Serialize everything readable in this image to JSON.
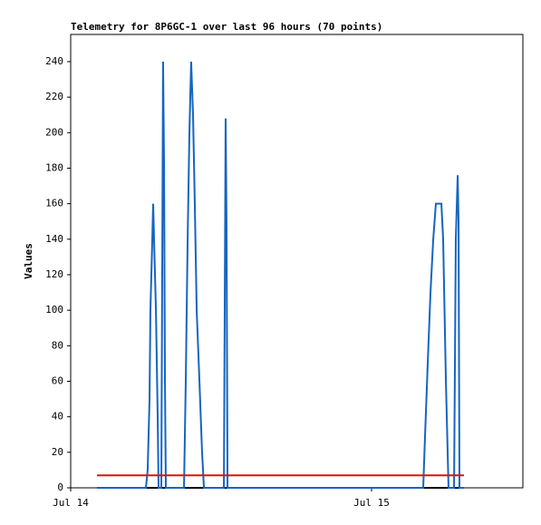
{
  "chart_data": {
    "type": "line",
    "title": "Telemetry for 8P6GC-1 over last 96 hours (70 points)",
    "y_label": "Values",
    "xlim": [
      0,
      36.07
    ],
    "xticks": [
      {
        "value": 0,
        "label": "Jul 14"
      },
      {
        "value": 24,
        "label": "Jul 15"
      }
    ],
    "ylim": [
      0,
      255.3
    ],
    "yticks": [
      0,
      20,
      40,
      60,
      80,
      100,
      120,
      140,
      160,
      180,
      200,
      220,
      240
    ],
    "grid": false,
    "series": [
      {
        "color": "#000000",
        "x": [
          2.1,
          31.37
        ],
        "values": [
          0,
          0
        ]
      },
      {
        "color": "#1565c0",
        "x": [
          2.1,
          6.0,
          6.14,
          6.29,
          6.36,
          6.51,
          6.58,
          6.65,
          6.8,
          6.94,
          7.01,
          7.23,
          7.3,
          7.37,
          7.45,
          7.52,
          7.59,
          9.04,
          9.18,
          9.33,
          9.47,
          9.61,
          9.76,
          9.9,
          10.05,
          10.27,
          10.48,
          10.63,
          12.22,
          12.36,
          12.43,
          12.51,
          28.12,
          28.27,
          28.48,
          28.7,
          28.92,
          29.13,
          29.57,
          29.71,
          29.93,
          30.14,
          30.58,
          30.72,
          30.87,
          30.94,
          31.01,
          31.37
        ],
        "values": [
          0,
          0,
          10,
          50,
          100,
          140,
          160,
          140,
          100,
          40,
          0,
          0,
          120,
          240,
          180,
          60,
          0,
          0,
          60,
          140,
          200,
          240,
          210,
          160,
          100,
          60,
          20,
          0,
          0,
          208,
          150,
          0,
          0,
          30,
          70,
          110,
          140,
          160,
          160,
          140,
          60,
          0,
          0,
          140,
          176,
          150,
          0,
          0
        ]
      },
      {
        "color": "#e01010",
        "x": [
          2.1,
          31.37
        ],
        "values": [
          7,
          7
        ]
      }
    ]
  }
}
